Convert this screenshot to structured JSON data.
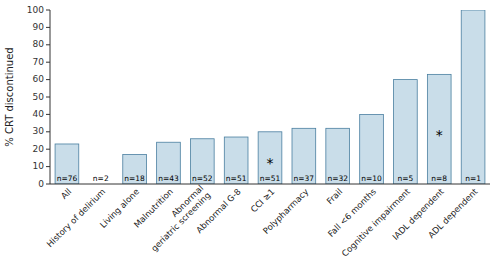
{
  "chart_data": {
    "type": "bar",
    "categories": [
      "All",
      "History of delirium",
      "Living alone",
      "Malnutrition",
      "Abnormal\ngeriatric screening",
      "Abnormal G-8",
      "CCI ≥1",
      "Polypharmacy",
      "Frail",
      "Fall <6 months",
      "Cognitive impairment",
      "IADL dependent",
      "ADL dependent"
    ],
    "values": [
      23,
      0,
      17,
      24,
      26,
      27,
      30,
      32,
      32,
      40,
      60,
      63,
      100
    ],
    "n_labels": [
      "n=76",
      "n=2",
      "n=18",
      "n=43",
      "n=52",
      "n=51",
      "n=51",
      "n=37",
      "n=32",
      "n=10",
      "n=5",
      "n=8",
      "n=1"
    ],
    "annotations": [
      {
        "text": "*",
        "index": 6,
        "y": 12
      },
      {
        "text": "*",
        "index": 11,
        "y": 28
      }
    ],
    "color": "#c9dde9",
    "y_label": "% CRT discontinued",
    "ylim": [
      0,
      100
    ],
    "yticks": [
      0,
      10,
      20,
      30,
      40,
      50,
      60,
      70,
      80,
      90,
      100
    ],
    "grid": false
  }
}
